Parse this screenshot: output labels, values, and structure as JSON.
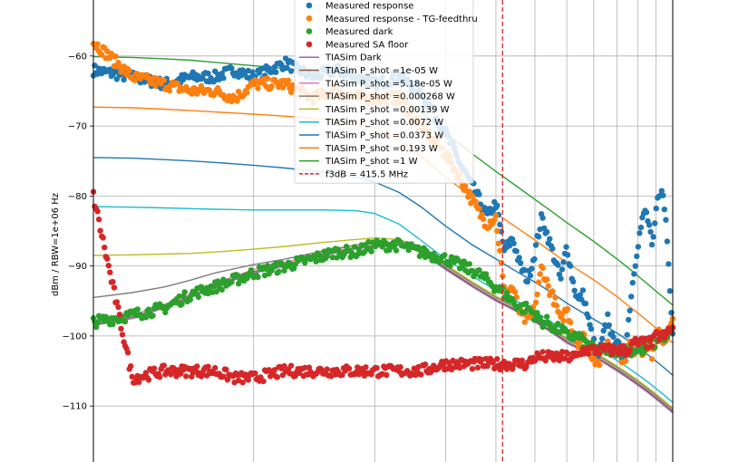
{
  "chart_data": {
    "type": "line",
    "title": "",
    "xlabel": "",
    "ylabel": "dBm / RBW=1e+06 Hz",
    "xlim": [
      40,
      1100
    ],
    "x_scale": "log",
    "ylim": [
      -118,
      -52
    ],
    "yticks": [
      -60,
      -70,
      -80,
      -90,
      -100,
      -110
    ],
    "grid": true,
    "legend_position": "top-center",
    "series": [
      {
        "name": "Measured response",
        "kind": "scatter",
        "color": "#1f77b4",
        "x": [
          40,
          50,
          60,
          70,
          80,
          90,
          100,
          120,
          140,
          160,
          180,
          200,
          230,
          260,
          300,
          330,
          360,
          380,
          400,
          420,
          440,
          460,
          480,
          500,
          520,
          540,
          560,
          580,
          600,
          620,
          640,
          660,
          680,
          700,
          720,
          740,
          760,
          780,
          800,
          820,
          840,
          860,
          880,
          900,
          920,
          940,
          960,
          980,
          1000,
          1020,
          1040,
          1060,
          1080,
          1100
        ],
        "y": [
          -62,
          -63,
          -64,
          -63,
          -63,
          -62,
          -63,
          -61,
          -63,
          -62,
          -63,
          -64,
          -63,
          -65,
          -71,
          -76,
          -80,
          -83,
          -81,
          -88,
          -86,
          -90,
          -92,
          -88,
          -83,
          -86,
          -89,
          -92,
          -87,
          -92,
          -95,
          -94,
          -98,
          -101,
          -103,
          -100,
          -97,
          -101,
          -100,
          -104,
          -102,
          -96,
          -91,
          -87,
          -84,
          -82,
          -84,
          -88,
          -82,
          -79,
          -80,
          -84,
          -92,
          -99
        ]
      },
      {
        "name": "Measured response - TG-feedthru",
        "kind": "scatter",
        "color": "#ff7f0e",
        "x": [
          40,
          50,
          60,
          70,
          80,
          90,
          100,
          120,
          140,
          160,
          180,
          200,
          230,
          260,
          300,
          330,
          360,
          380,
          400,
          420,
          440,
          460,
          480,
          500,
          520,
          540,
          560,
          580,
          600,
          620,
          640,
          660,
          680,
          700,
          720,
          740,
          760,
          780,
          800,
          820,
          840,
          860,
          880,
          900,
          920,
          940,
          960,
          980,
          1000,
          1020,
          1040,
          1060,
          1080,
          1100
        ],
        "y": [
          -58,
          -63,
          -64,
          -65,
          -65,
          -66,
          -64,
          -64,
          -66,
          -65,
          -66,
          -66,
          -66,
          -70,
          -74,
          -78,
          -82,
          -84,
          -83,
          -94,
          -93,
          -97,
          -98,
          -96,
          -90,
          -93,
          -95,
          -98,
          -96,
          -99,
          -101,
          -100,
          -102,
          -103,
          -104,
          -102,
          -101,
          -102,
          -102,
          -103,
          -103,
          -101,
          -102,
          -101,
          -102,
          -102,
          -101,
          -103,
          -101,
          -99,
          -101,
          -100,
          -99,
          -98
        ]
      },
      {
        "name": "Measured dark",
        "kind": "scatter",
        "color": "#2ca02c",
        "x": [
          40,
          50,
          60,
          70,
          80,
          90,
          100,
          120,
          140,
          160,
          180,
          200,
          230,
          260,
          300,
          330,
          360,
          380,
          400,
          420,
          440,
          460,
          480,
          500,
          520,
          540,
          560,
          580,
          600,
          620,
          640,
          660,
          680,
          700,
          720,
          740,
          760,
          780,
          800,
          820,
          840,
          860,
          880,
          900,
          920,
          940,
          960,
          980,
          1000,
          1020,
          1040,
          1060,
          1080,
          1100
        ],
        "y": [
          -98,
          -97,
          -96,
          -94,
          -93,
          -92,
          -91,
          -90,
          -89,
          -88,
          -88,
          -87,
          -87,
          -88,
          -89,
          -90,
          -91,
          -92,
          -93,
          -94,
          -95,
          -96,
          -96,
          -97,
          -98,
          -98,
          -99,
          -99,
          -100,
          -100,
          -100,
          -101,
          -101,
          -102,
          -102,
          -102,
          -102,
          -102,
          -102,
          -102,
          -102,
          -102,
          -102,
          -102,
          -102,
          -102,
          -101,
          -101,
          -101,
          -100,
          -100,
          -100,
          -100,
          -99
        ]
      },
      {
        "name": "Measured SA floor",
        "kind": "scatter",
        "color": "#d62728",
        "x": [
          40,
          50,
          60,
          70,
          80,
          90,
          100,
          120,
          140,
          160,
          180,
          200,
          230,
          260,
          300,
          330,
          360,
          380,
          400,
          420,
          440,
          460,
          480,
          500,
          520,
          540,
          560,
          580,
          600,
          620,
          640,
          660,
          680,
          700,
          720,
          740,
          760,
          780,
          800,
          820,
          840,
          860,
          880,
          900,
          920,
          940,
          960,
          980,
          1000,
          1020,
          1040,
          1060,
          1080,
          1100
        ],
        "y": [
          -80,
          -106,
          -105,
          -105,
          -105,
          -106,
          -106,
          -105,
          -105,
          -105,
          -105,
          -105,
          -105,
          -105,
          -104,
          -104,
          -104,
          -104,
          -104,
          -104,
          -104,
          -104,
          -104,
          -103,
          -103,
          -103,
          -103,
          -103,
          -103,
          -103,
          -103,
          -102,
          -102,
          -102,
          -102,
          -102,
          -102,
          -102,
          -102,
          -102,
          -102,
          -102,
          -101,
          -101,
          -101,
          -101,
          -101,
          -101,
          -100,
          -100,
          -100,
          -100,
          -99,
          -99
        ]
      },
      {
        "name": "TIASim Dark",
        "kind": "line",
        "color": "#9467bd",
        "x": [
          40,
          50,
          60,
          70,
          80,
          100,
          120,
          150,
          180,
          200,
          230,
          260,
          300,
          350,
          400,
          450,
          500,
          550,
          600,
          650,
          700,
          750,
          800,
          850,
          900,
          950,
          1000,
          1050,
          1100
        ],
        "y": [
          -98.5,
          -97.5,
          -96,
          -94.5,
          -93,
          -91,
          -90,
          -88.5,
          -87.5,
          -87.3,
          -87,
          -88,
          -90.5,
          -93,
          -95,
          -96.5,
          -98,
          -99.5,
          -101,
          -102,
          -103,
          -104,
          -105,
          -106,
          -107,
          -108,
          -109,
          -110,
          -111
        ]
      },
      {
        "name": "TIASim P_shot =1e-05 W",
        "kind": "line",
        "color": "#8c564b",
        "x": [
          40,
          50,
          60,
          70,
          80,
          100,
          120,
          150,
          180,
          200,
          230,
          260,
          300,
          350,
          400,
          450,
          500,
          550,
          600,
          650,
          700,
          750,
          800,
          850,
          900,
          950,
          1000,
          1050,
          1100
        ],
        "y": [
          -98.3,
          -97.3,
          -95.8,
          -94.3,
          -92.8,
          -90.8,
          -89.8,
          -88.3,
          -87.3,
          -87.1,
          -86.8,
          -87.8,
          -90.3,
          -92.8,
          -94.8,
          -96.3,
          -97.8,
          -99.3,
          -100.8,
          -101.8,
          -102.8,
          -103.8,
          -104.8,
          -105.8,
          -106.8,
          -107.8,
          -108.8,
          -109.8,
          -110.8
        ]
      },
      {
        "name": "TIASim P_shot =5.18e-05 W",
        "kind": "line",
        "color": "#e377c2",
        "x": [
          40,
          50,
          60,
          70,
          80,
          100,
          120,
          150,
          180,
          200,
          230,
          260,
          300,
          350,
          400,
          450,
          500,
          550,
          600,
          650,
          700,
          750,
          800,
          850,
          900,
          950,
          1000,
          1050,
          1100
        ],
        "y": [
          -98,
          -97,
          -95.5,
          -94,
          -92.5,
          -90.5,
          -89.5,
          -88,
          -87,
          -86.8,
          -86.5,
          -87.5,
          -90,
          -92.5,
          -94.5,
          -96,
          -97.5,
          -99,
          -100.5,
          -101.5,
          -102.5,
          -103.5,
          -104.5,
          -105.5,
          -106.5,
          -107.5,
          -108.5,
          -109.5,
          -110.5
        ]
      },
      {
        "name": "TIASim P_shot =0.000268 W",
        "kind": "line",
        "color": "#7f7f7f",
        "x": [
          40,
          50,
          60,
          70,
          80,
          100,
          120,
          150,
          180,
          200,
          230,
          260,
          300,
          350,
          400,
          450,
          500,
          550,
          600,
          650,
          700,
          750,
          800,
          850,
          900,
          950,
          1000,
          1050,
          1100
        ],
        "y": [
          -94.5,
          -93.8,
          -93,
          -92,
          -91,
          -89.8,
          -89,
          -87.8,
          -87,
          -86.8,
          -86.5,
          -87.5,
          -90,
          -92.5,
          -94.5,
          -96,
          -97.5,
          -99,
          -100.5,
          -101.5,
          -102.5,
          -103.5,
          -104.5,
          -105.5,
          -106.5,
          -107.5,
          -108.5,
          -109.5,
          -110.5
        ]
      },
      {
        "name": "TIASim P_shot =0.00139 W",
        "kind": "line",
        "color": "#bcbd22",
        "x": [
          40,
          50,
          60,
          70,
          80,
          100,
          120,
          150,
          180,
          200,
          230,
          260,
          300,
          350,
          400,
          450,
          500,
          550,
          600,
          650,
          700,
          750,
          800,
          850,
          900,
          950,
          1000,
          1050,
          1100
        ],
        "y": [
          -88.5,
          -88.4,
          -88.3,
          -88.2,
          -88,
          -87.6,
          -87.2,
          -86.6,
          -86.2,
          -86,
          -86.2,
          -87.3,
          -89.8,
          -92.3,
          -94.3,
          -95.8,
          -97.3,
          -98.8,
          -100.3,
          -101.3,
          -102.3,
          -103.3,
          -104.3,
          -105.3,
          -106.3,
          -107.3,
          -108.3,
          -109.3,
          -110.3
        ]
      },
      {
        "name": "TIASim P_shot =0.0072 W",
        "kind": "line",
        "color": "#17becf",
        "x": [
          40,
          50,
          60,
          70,
          80,
          100,
          120,
          150,
          180,
          200,
          230,
          260,
          300,
          350,
          400,
          450,
          500,
          550,
          600,
          650,
          700,
          750,
          800,
          850,
          900,
          950,
          1000,
          1050,
          1100
        ],
        "y": [
          -81.5,
          -81.6,
          -81.7,
          -81.8,
          -81.9,
          -82,
          -82,
          -82,
          -82.1,
          -82.5,
          -84,
          -86.3,
          -89,
          -91.5,
          -93.5,
          -95,
          -96.5,
          -98,
          -99.5,
          -100.5,
          -101.5,
          -102.5,
          -103.5,
          -104.5,
          -105.5,
          -106.5,
          -107.5,
          -108.5,
          -109.5
        ]
      },
      {
        "name": "TIASim P_shot =0.0373 W",
        "kind": "line",
        "color": "#1f77b4",
        "x": [
          40,
          50,
          60,
          70,
          80,
          100,
          120,
          150,
          180,
          200,
          230,
          260,
          300,
          350,
          400,
          450,
          500,
          550,
          600,
          650,
          700,
          750,
          800,
          850,
          900,
          950,
          1000,
          1050,
          1100
        ],
        "y": [
          -74.5,
          -74.6,
          -74.8,
          -75,
          -75.2,
          -75.6,
          -76,
          -76.6,
          -77.3,
          -78,
          -79.5,
          -81.5,
          -84.3,
          -87,
          -89,
          -90.8,
          -92.3,
          -93.8,
          -95.3,
          -96.5,
          -97.6,
          -98.6,
          -99.6,
          -100.6,
          -101.6,
          -102.6,
          -103.6,
          -104.6,
          -105.6
        ]
      },
      {
        "name": "TIASim P_shot =0.193 W",
        "kind": "line",
        "color": "#ff7f0e",
        "x": [
          40,
          50,
          60,
          70,
          80,
          100,
          120,
          150,
          180,
          200,
          230,
          260,
          300,
          350,
          400,
          450,
          500,
          550,
          600,
          650,
          700,
          750,
          800,
          850,
          900,
          950,
          1000,
          1050,
          1100
        ],
        "y": [
          -67.3,
          -67.4,
          -67.6,
          -67.8,
          -68,
          -68.3,
          -68.6,
          -69,
          -69.5,
          -70.2,
          -72,
          -74.3,
          -77.3,
          -80.2,
          -82.5,
          -84.5,
          -86.3,
          -88,
          -89.5,
          -90.8,
          -92,
          -93.2,
          -94.4,
          -95.6,
          -96.7,
          -97.8,
          -98.9,
          -99.9,
          -101
        ]
      },
      {
        "name": "TIASim P_shot =1 W",
        "kind": "line",
        "color": "#2ca02c",
        "x": [
          40,
          50,
          60,
          70,
          80,
          100,
          120,
          150,
          180,
          200,
          230,
          260,
          300,
          350,
          400,
          450,
          500,
          550,
          600,
          650,
          700,
          750,
          800,
          850,
          900,
          950,
          1000,
          1050,
          1100
        ],
        "y": [
          -60.1,
          -60.2,
          -60.4,
          -60.6,
          -60.9,
          -61.4,
          -61.8,
          -62.3,
          -62.8,
          -63.5,
          -65.5,
          -68,
          -71,
          -74,
          -76.5,
          -78.6,
          -80.5,
          -82.2,
          -83.8,
          -85.2,
          -86.5,
          -87.8,
          -89,
          -90.2,
          -91.4,
          -92.5,
          -93.6,
          -94.6,
          -95.6
        ]
      },
      {
        "name": "f3dB = 415.5 MHz",
        "kind": "vline",
        "color": "#d62728",
        "x": 415.5
      }
    ]
  }
}
